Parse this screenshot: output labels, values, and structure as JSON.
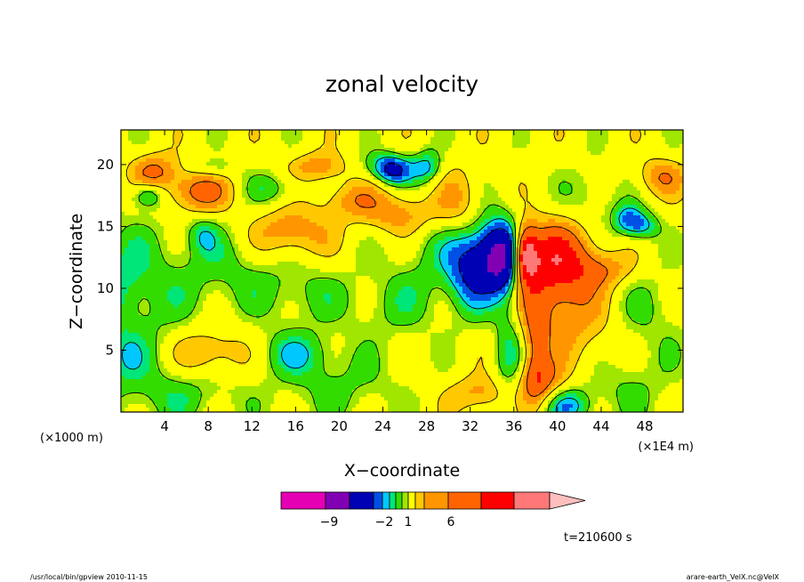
{
  "chart_data": {
    "type": "heatmap",
    "title": "zonal velocity",
    "xlabel": "X−coordinate",
    "ylabel": "Z−coordinate",
    "x_ticks": [
      4,
      8,
      12,
      16,
      20,
      24,
      28,
      32,
      36,
      40,
      44,
      48
    ],
    "x_tick_labels": [
      "4",
      "8",
      "12",
      "16",
      "20",
      "24",
      "28",
      "32",
      "36",
      "40",
      "44",
      "48"
    ],
    "y_ticks": [
      5,
      10,
      15,
      20
    ],
    "y_tick_labels": [
      "5",
      "10",
      "15",
      "20"
    ],
    "x_range": [
      0,
      51.5
    ],
    "y_range": [
      0,
      22.8
    ],
    "x_unit_left": "(×1000 m)",
    "x_unit_right": "(×1E4 m)",
    "time_label": "t=210600 s",
    "colorbar": {
      "colors": [
        "#e600b4",
        "#8200b4",
        "#0000b4",
        "#0050e6",
        "#00c8ff",
        "#00e678",
        "#32dc00",
        "#a0e600",
        "#ffff00",
        "#ffc800",
        "#ff9600",
        "#ff6400",
        "#ff0000",
        "#ff7878",
        "#ffbebe"
      ],
      "tick_labels": [
        "−9",
        "−2",
        "1",
        "6"
      ],
      "tick_index": [
        1,
        3,
        5,
        7
      ]
    },
    "contour_levels": [
      -9,
      -6,
      -4,
      -2,
      -1,
      1,
      2,
      4,
      6,
      9
    ],
    "features": [
      {
        "x": 3.0,
        "z": 19.5,
        "sx": 1.5,
        "sz": 1.0,
        "v": 3
      },
      {
        "x": 2.5,
        "z": 17.5,
        "sx": 1.0,
        "sz": 0.7,
        "v": -3
      },
      {
        "x": 7.0,
        "z": 17.8,
        "sx": 2.2,
        "sz": 1.2,
        "v": 3.5
      },
      {
        "x": 8.5,
        "z": 19.7,
        "sx": 1.5,
        "sz": 0.6,
        "v": -1.5
      },
      {
        "x": 14.0,
        "z": 18.0,
        "sx": 2.0,
        "sz": 1.0,
        "v": -1.8
      },
      {
        "x": 15.5,
        "z": 14.5,
        "sx": 2.5,
        "sz": 1.5,
        "v": 2.8
      },
      {
        "x": 18.0,
        "z": 19.8,
        "sx": 1.8,
        "sz": 0.8,
        "v": 2.5
      },
      {
        "x": 21.0,
        "z": 17.2,
        "sx": 2.0,
        "sz": 1.0,
        "v": 2.0
      },
      {
        "x": 24.0,
        "z": 20.0,
        "sx": 1.5,
        "sz": 0.8,
        "v": -1.8
      },
      {
        "x": 25.5,
        "z": 16.0,
        "sx": 2.5,
        "sz": 1.2,
        "v": 2.4
      },
      {
        "x": 25.0,
        "z": 19.5,
        "sx": 1.2,
        "sz": 0.8,
        "v": -4
      },
      {
        "x": 28.0,
        "z": 19.8,
        "sx": 1.0,
        "sz": 1.0,
        "v": -3
      },
      {
        "x": 31.0,
        "z": 16.8,
        "sx": 1.5,
        "sz": 2.0,
        "v": 2.0
      },
      {
        "x": 7.5,
        "z": 14.3,
        "sx": 1.0,
        "sz": 1.0,
        "v": -1.8
      },
      {
        "x": 8.0,
        "z": 4.8,
        "sx": 2.5,
        "sz": 1.5,
        "v": 2.4
      },
      {
        "x": 16.0,
        "z": 4.8,
        "sx": 2.5,
        "sz": 1.3,
        "v": -2.2
      },
      {
        "x": 0.0,
        "z": 11.0,
        "sx": 2.0,
        "sz": 2.5,
        "v": -1.5
      },
      {
        "x": 0.0,
        "z": 4.5,
        "sx": 1.5,
        "sz": 1.5,
        "v": -1.5
      },
      {
        "x": 2.0,
        "z": 7.5,
        "sx": 4.0,
        "sz": 6.0,
        "v": -1.3
      },
      {
        "x": 6.0,
        "z": 1.5,
        "sx": 4.0,
        "sz": 1.5,
        "v": -1.3
      },
      {
        "x": 10.0,
        "z": 11.5,
        "sx": 4.0,
        "sz": 2.5,
        "v": -1.4
      },
      {
        "x": 17.0,
        "z": 9.5,
        "sx": 3.0,
        "sz": 1.8,
        "v": -1.3
      },
      {
        "x": 25.0,
        "z": 8.5,
        "sx": 3.0,
        "sz": 2.0,
        "v": -1.3
      },
      {
        "x": 20.0,
        "z": 2.0,
        "sx": 4.0,
        "sz": 2.0,
        "v": -1.4
      },
      {
        "x": 30.0,
        "z": 12.5,
        "sx": 3.5,
        "sz": 2.5,
        "v": -1.6
      },
      {
        "x": 32.0,
        "z": 11.5,
        "sx": 1.5,
        "sz": 2.5,
        "v": -3.5
      },
      {
        "x": 35.0,
        "z": 12.5,
        "sx": 1.5,
        "sz": 2.0,
        "v": -9
      },
      {
        "x": 37.0,
        "z": 12.7,
        "sx": 0.8,
        "sz": 1.6,
        "v": 8
      },
      {
        "x": 39.5,
        "z": 12.5,
        "sx": 2.5,
        "sz": 2.0,
        "v": 4.5
      },
      {
        "x": 40.0,
        "z": 9.0,
        "sx": 3.0,
        "sz": 3.0,
        "v": 2.8
      },
      {
        "x": 44.5,
        "z": 11.5,
        "sx": 2.0,
        "sz": 1.0,
        "v": 2.0
      },
      {
        "x": 43.0,
        "z": 17.5,
        "sx": 2.0,
        "sz": 1.8,
        "v": -1.3
      },
      {
        "x": 46.5,
        "z": 15.5,
        "sx": 1.0,
        "sz": 0.9,
        "v": -3.5
      },
      {
        "x": 49.5,
        "z": 19.0,
        "sx": 1.5,
        "sz": 1.0,
        "v": 2.5
      },
      {
        "x": 48.0,
        "z": 15.0,
        "sx": 1.0,
        "sz": 0.8,
        "v": -2.5
      },
      {
        "x": 38.5,
        "z": 2.5,
        "sx": 1.5,
        "sz": 1.2,
        "v": 2.8
      },
      {
        "x": 41.0,
        "z": 0.5,
        "sx": 1.5,
        "sz": 1.0,
        "v": -3
      },
      {
        "x": 33.0,
        "z": 1.5,
        "sx": 2.0,
        "sz": 1.0,
        "v": 2.2
      },
      {
        "x": 35.5,
        "z": 5.0,
        "sx": 1.0,
        "sz": 3.0,
        "v": -2.5
      },
      {
        "x": 38.0,
        "z": 5.0,
        "sx": 0.8,
        "sz": 3.0,
        "v": 2.5
      },
      {
        "x": 46.0,
        "z": 2.0,
        "sx": 3.0,
        "sz": 2.0,
        "v": -1.3
      },
      {
        "x": 48.0,
        "z": 8.0,
        "sx": 3.0,
        "sz": 3.0,
        "v": -1.2
      },
      {
        "x": 44.0,
        "z": 5.0,
        "sx": 2.0,
        "sz": 2.0,
        "v": 0.8
      }
    ]
  },
  "footer": {
    "left_caption": "/usr/local/bin/gpview   2010-11-15",
    "right_caption": "arare-earth_VelX.nc@VelX"
  }
}
